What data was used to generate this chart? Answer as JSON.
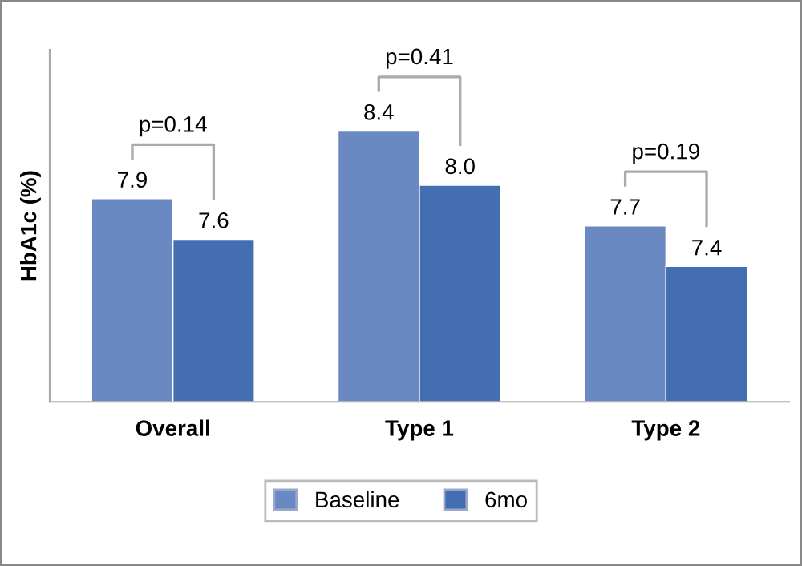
{
  "chart_data": {
    "type": "bar",
    "ylabel": "HbA1c (%)",
    "categories": [
      "Overall",
      "Type 1",
      "Type 2"
    ],
    "series": [
      {
        "name": "Baseline",
        "color": "#6a88c2",
        "values": [
          7.9,
          8.4,
          7.7
        ],
        "value_labels": [
          "7.9",
          "8.4",
          "7.7"
        ]
      },
      {
        "name": "6mo",
        "color": "#436fb2",
        "values": [
          7.6,
          8.0,
          7.4
        ],
        "value_labels": [
          "7.6",
          "8.0",
          "7.4"
        ]
      }
    ],
    "ylim": [
      6.4,
      9.0
    ],
    "tick_labels": "x",
    "legend": "bottom",
    "grid": false,
    "annotations": [
      "p=0.14",
      "p=0.41",
      "p=0.19"
    ]
  }
}
